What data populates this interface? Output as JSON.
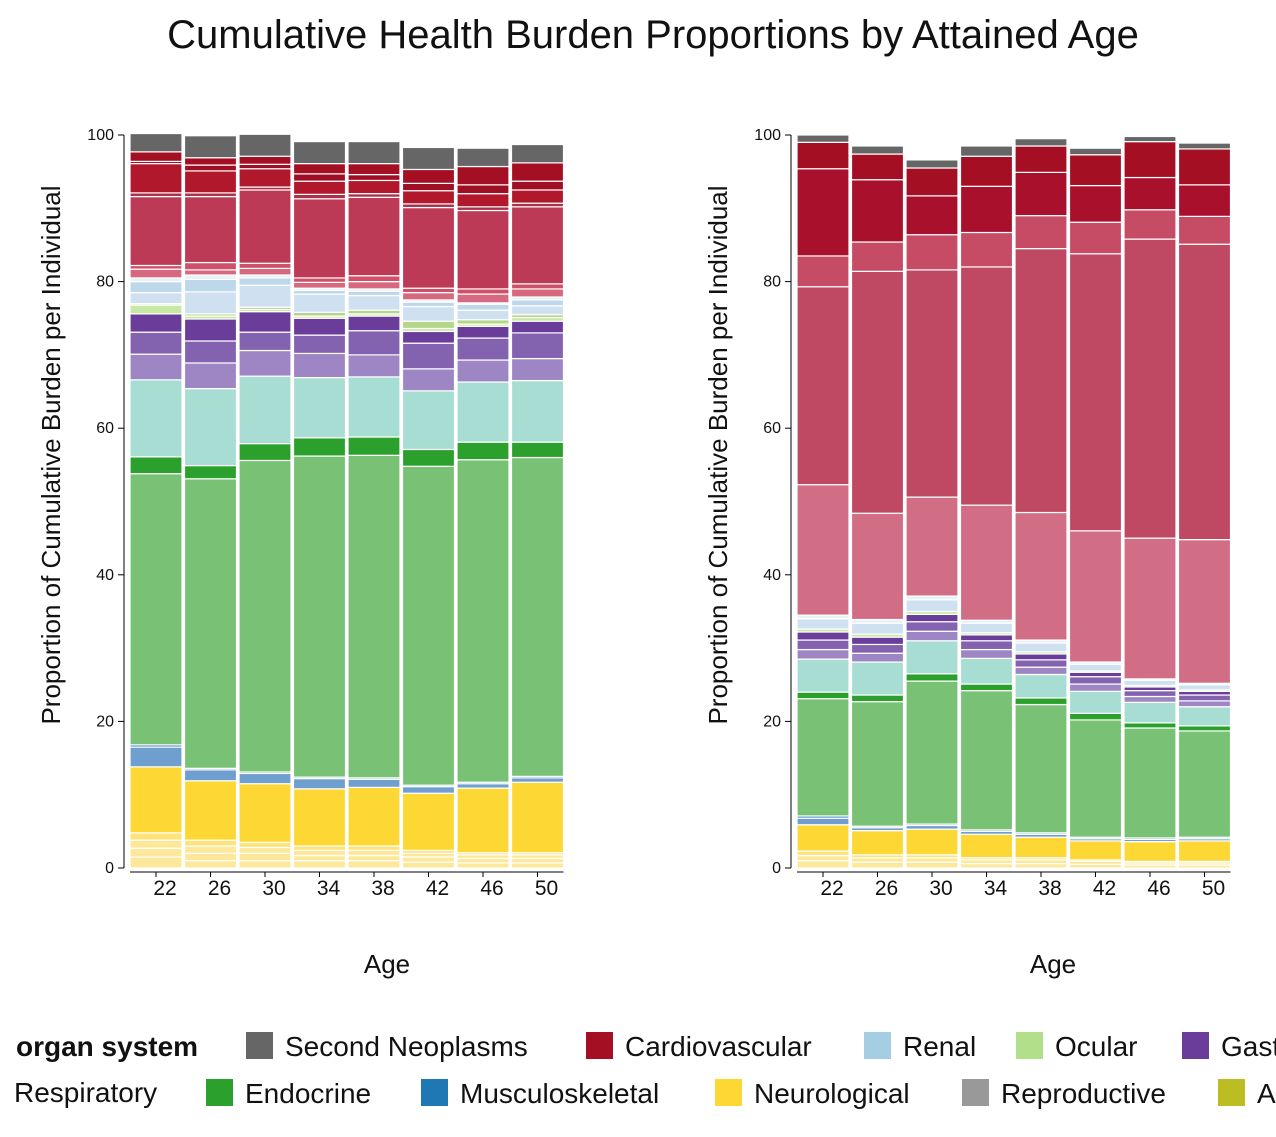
{
  "title": "Cumulative Health Burden Proportions by Attained Age",
  "chart_data": [
    {
      "type": "bar",
      "stacked": true,
      "panel": "left",
      "categories": [
        "22",
        "26",
        "30",
        "34",
        "38",
        "42",
        "46",
        "50"
      ],
      "xlabel": "Age",
      "ylabel": "Proportion of Cumulative Burden per Individual",
      "ylim": [
        0,
        100
      ],
      "yticks": [
        "0",
        "20",
        "40",
        "60",
        "80",
        "100"
      ],
      "series": [
        {
          "color": "#fde89a",
          "values": [
            1.5,
            1.0,
            1.0,
            1.0,
            1.0,
            0.8,
            0.7,
            0.7
          ]
        },
        {
          "color": "#fde89a",
          "values": [
            1.2,
            1.0,
            1.0,
            0.7,
            0.7,
            0.7,
            0.6,
            0.6
          ]
        },
        {
          "color": "#fde89a",
          "values": [
            1.1,
            1.0,
            0.8,
            0.7,
            0.7,
            0.5,
            0.5,
            0.5
          ]
        },
        {
          "color": "#fee27a",
          "values": [
            1.0,
            0.8,
            0.7,
            0.6,
            0.6,
            0.4,
            0.3,
            0.3
          ]
        },
        {
          "color": "#fdd835",
          "values": [
            9.0,
            8.1,
            8.0,
            7.8,
            8.0,
            7.8,
            8.8,
            9.6
          ]
        },
        {
          "color": "#6f9fcf",
          "values": [
            2.7,
            1.5,
            1.4,
            1.4,
            1.1,
            0.9,
            0.6,
            0.6
          ]
        },
        {
          "color": "#3b7fbf",
          "values": [
            0.3,
            0.2,
            0.2,
            0.2,
            0.2,
            0.2,
            0.2,
            0.2
          ]
        },
        {
          "color": "#79c175",
          "values": [
            37.0,
            39.5,
            42.5,
            43.8,
            44.0,
            43.5,
            44.0,
            43.5
          ]
        },
        {
          "color": "#2ca02c",
          "values": [
            2.3,
            1.8,
            2.3,
            2.5,
            2.5,
            2.3,
            2.4,
            2.1
          ]
        },
        {
          "color": "#a8ddd4",
          "values": [
            10.5,
            10.5,
            9.2,
            8.2,
            8.2,
            8.0,
            8.2,
            8.4
          ]
        },
        {
          "color": "#9e86c4",
          "values": [
            3.5,
            3.5,
            3.5,
            3.3,
            3.0,
            3.0,
            3.0,
            3.0
          ]
        },
        {
          "color": "#8362b0",
          "values": [
            3.0,
            3.0,
            2.5,
            2.5,
            3.3,
            3.5,
            3.0,
            3.5
          ]
        },
        {
          "color": "#6a3d9a",
          "values": [
            2.5,
            3.0,
            2.8,
            2.3,
            2.0,
            1.6,
            1.6,
            1.6
          ]
        },
        {
          "color": "#c7e9a4",
          "values": [
            1.2,
            0.4,
            0.3,
            0.3,
            0.3,
            0.4,
            0.3,
            0.5
          ]
        },
        {
          "color": "#b5d68a",
          "values": [
            0.2,
            0.3,
            0.3,
            0.5,
            0.5,
            1.0,
            0.6,
            0.4
          ]
        },
        {
          "color": "#cfe1f1",
          "values": [
            1.5,
            3.0,
            3.0,
            2.5,
            2.0,
            2.0,
            1.3,
            1.2
          ]
        },
        {
          "color": "#bed8eb",
          "values": [
            1.5,
            1.7,
            1.0,
            0.5,
            0.6,
            0.6,
            0.8,
            0.8
          ]
        },
        {
          "color": "#e6f1f8",
          "values": [
            0.5,
            0.6,
            0.4,
            0.3,
            0.3,
            0.3,
            0.2,
            0.4
          ]
        },
        {
          "color": "#d6697f",
          "values": [
            1.2,
            0.7,
            0.9,
            0.8,
            1.0,
            1.0,
            1.2,
            1.1
          ]
        },
        {
          "color": "#cf5069",
          "values": [
            0.5,
            1.0,
            0.7,
            0.6,
            0.8,
            0.6,
            0.7,
            0.7
          ]
        },
        {
          "color": "#bc3a56",
          "values": [
            9.4,
            9.0,
            10.0,
            10.8,
            10.7,
            11.0,
            10.7,
            10.5
          ]
        },
        {
          "color": "#a8324b",
          "values": [
            0.5,
            0.5,
            0.4,
            0.6,
            0.5,
            0.5,
            0.5,
            0.5
          ]
        },
        {
          "color": "#b2182b",
          "values": [
            4.0,
            3.0,
            2.5,
            1.8,
            1.8,
            1.8,
            1.8,
            1.8
          ]
        },
        {
          "color": "#9e0f26",
          "values": [
            0.3,
            0.8,
            0.6,
            1.0,
            0.8,
            1.0,
            1.2,
            1.2
          ]
        },
        {
          "color": "#a50f24",
          "values": [
            1.3,
            1.0,
            1.1,
            1.4,
            1.5,
            1.9,
            2.5,
            2.5
          ]
        },
        {
          "color": "#666666",
          "values": [
            2.5,
            3.0,
            3.0,
            3.0,
            3.0,
            3.0,
            2.5,
            2.5
          ]
        }
      ]
    },
    {
      "type": "bar",
      "stacked": true,
      "panel": "right",
      "categories": [
        "22",
        "26",
        "30",
        "34",
        "38",
        "42",
        "46",
        "50"
      ],
      "xlabel": "Age",
      "ylabel": "Proportion of Cumulative Burden per Individual",
      "ylim": [
        0,
        100
      ],
      "yticks": [
        "0",
        "20",
        "40",
        "60",
        "80",
        "100"
      ],
      "series": [
        {
          "color": "#fde89a",
          "values": [
            1.0,
            0.8,
            0.8,
            0.6,
            0.6,
            0.5,
            0.4,
            0.4
          ]
        },
        {
          "color": "#fde89a",
          "values": [
            0.7,
            0.6,
            0.6,
            0.5,
            0.5,
            0.4,
            0.3,
            0.3
          ]
        },
        {
          "color": "#fee27a",
          "values": [
            0.6,
            0.4,
            0.4,
            0.3,
            0.3,
            0.2,
            0.2,
            0.2
          ]
        },
        {
          "color": "#fdd835",
          "values": [
            3.6,
            3.3,
            3.5,
            3.2,
            2.8,
            2.6,
            2.7,
            2.8
          ]
        },
        {
          "color": "#6f9fcf",
          "values": [
            0.9,
            0.4,
            0.5,
            0.4,
            0.4,
            0.3,
            0.3,
            0.3
          ]
        },
        {
          "color": "#3b7fbf",
          "values": [
            0.3,
            0.2,
            0.2,
            0.2,
            0.2,
            0.2,
            0.2,
            0.2
          ]
        },
        {
          "color": "#79c175",
          "values": [
            16.0,
            17.0,
            19.5,
            19.0,
            17.5,
            16.0,
            15.0,
            14.5
          ]
        },
        {
          "color": "#2ca02c",
          "values": [
            0.9,
            0.9,
            1.0,
            0.9,
            0.9,
            0.9,
            0.7,
            0.7
          ]
        },
        {
          "color": "#a8ddd4",
          "values": [
            4.5,
            4.5,
            4.5,
            3.5,
            3.2,
            3.0,
            2.8,
            2.6
          ]
        },
        {
          "color": "#9e86c4",
          "values": [
            1.3,
            1.2,
            1.3,
            1.2,
            1.0,
            1.0,
            0.8,
            0.8
          ]
        },
        {
          "color": "#8362b0",
          "values": [
            1.3,
            1.2,
            1.3,
            1.2,
            1.0,
            1.0,
            0.8,
            0.8
          ]
        },
        {
          "color": "#6a3d9a",
          "values": [
            1.1,
            1.0,
            1.0,
            0.8,
            0.8,
            0.6,
            0.5,
            0.5
          ]
        },
        {
          "color": "#c7e9a4",
          "values": [
            0.4,
            0.4,
            0.4,
            0.3,
            0.3,
            0.2,
            0.2,
            0.2
          ]
        },
        {
          "color": "#cfe1f1",
          "values": [
            1.4,
            1.5,
            1.6,
            1.3,
            1.2,
            0.9,
            0.7,
            0.7
          ]
        },
        {
          "color": "#e6f1f8",
          "values": [
            0.5,
            0.5,
            0.5,
            0.4,
            0.4,
            0.3,
            0.2,
            0.2
          ]
        },
        {
          "color": "#d16d84",
          "values": [
            17.8,
            14.5,
            13.5,
            15.7,
            17.4,
            17.9,
            19.2,
            19.6
          ]
        },
        {
          "color": "#bf4963",
          "values": [
            27.0,
            33.0,
            31.0,
            32.5,
            36.0,
            37.8,
            40.8,
            40.3
          ]
        },
        {
          "color": "#c64b65",
          "values": [
            4.2,
            4.0,
            4.8,
            4.7,
            4.5,
            4.3,
            4.0,
            3.8
          ]
        },
        {
          "color": "#a8102c",
          "values": [
            11.9,
            8.5,
            5.3,
            6.3,
            5.9,
            5.0,
            4.4,
            4.3
          ]
        },
        {
          "color": "#a50f24",
          "values": [
            3.6,
            3.5,
            3.8,
            4.1,
            3.6,
            4.2,
            4.9,
            4.9
          ]
        },
        {
          "color": "#666666",
          "values": [
            1.0,
            1.1,
            1.1,
            1.4,
            1.0,
            0.9,
            0.7,
            0.8
          ]
        }
      ]
    }
  ],
  "legend": {
    "title": "organ system",
    "row1": [
      {
        "label": "Second Neoplasms",
        "color": "#666666"
      },
      {
        "label": "Cardiovascular",
        "color": "#a50f24"
      },
      {
        "label": "Renal",
        "color": "#a6cee3"
      },
      {
        "label": "Ocular",
        "color": "#b2df8a"
      },
      {
        "label": "Gast",
        "color": "#6a3d9a"
      }
    ],
    "row2_lead": "Respiratory",
    "row2": [
      {
        "label": "Endocrine",
        "color": "#2ca02c"
      },
      {
        "label": "Musculoskeletal",
        "color": "#1f77b4"
      },
      {
        "label": "Neurological",
        "color": "#fdd835"
      },
      {
        "label": "Reproductive",
        "color": "#999999"
      },
      {
        "label": "A",
        "color": "#bcbd22"
      }
    ]
  }
}
